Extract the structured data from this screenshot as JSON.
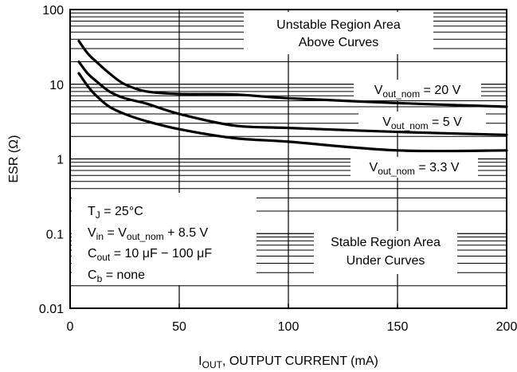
{
  "chart_data": {
    "type": "line",
    "xlabel": {
      "main": "I",
      "sub": "OUT",
      "rest": ", OUTPUT CURRENT (mA)"
    },
    "ylabel": "ESR (Ω)",
    "xlim": [
      0,
      200
    ],
    "ylim": [
      0.01,
      100
    ],
    "yscale": "log",
    "x_ticks": [
      0,
      50,
      100,
      150,
      200
    ],
    "x_tick_labels": [
      "0",
      "50",
      "100",
      "150",
      "200"
    ],
    "y_ticks": [
      0.01,
      0.1,
      1,
      10,
      100
    ],
    "y_tick_labels": [
      "0.01",
      "0.1",
      "1",
      "10",
      "100"
    ],
    "grid": "minor horizontal lines at each decade subdivision",
    "series": [
      {
        "label": [
          "V",
          "out_nom",
          " = 20 V"
        ],
        "x": [
          4,
          8,
          12,
          18,
          25,
          35,
          50,
          75,
          100,
          150,
          200
        ],
        "y": [
          38,
          26,
          20,
          14,
          10,
          8,
          7.4,
          7.3,
          6.5,
          5.6,
          5
        ]
      },
      {
        "label": [
          "V",
          "out_nom",
          " = 5 V"
        ],
        "x": [
          4,
          8,
          12,
          18,
          25,
          35,
          50,
          75,
          100,
          150,
          200
        ],
        "y": [
          20,
          14,
          11,
          8,
          6.5,
          5.5,
          4,
          2.8,
          2.6,
          2.3,
          2.1
        ]
      },
      {
        "label": [
          "V",
          "out_nom",
          " = 3.3 V"
        ],
        "x": [
          4,
          8,
          12,
          18,
          25,
          35,
          50,
          75,
          100,
          150,
          200
        ],
        "y": [
          14,
          9.5,
          7,
          5,
          4,
          3.2,
          2.5,
          1.9,
          1.7,
          1.3,
          1.3
        ]
      }
    ],
    "annotations": {
      "unstable": [
        "Unstable Region Area",
        "Above Curves"
      ],
      "stable": [
        "Stable Region Area",
        "Under Curves"
      ],
      "conditions": [
        [
          [
            "T",
            ""
          ],
          [
            "J",
            "sub"
          ],
          [
            " = 25°C",
            ""
          ]
        ],
        [
          [
            "V",
            ""
          ],
          [
            "in",
            "sub"
          ],
          [
            " = V",
            ""
          ],
          [
            "out_nom",
            "sub"
          ],
          [
            " + 8.5 V",
            ""
          ]
        ],
        [
          [
            "C",
            ""
          ],
          [
            "out",
            "sub"
          ],
          [
            " = 10 μF − 100 μF",
            ""
          ]
        ],
        [
          [
            "C",
            ""
          ],
          [
            "b",
            "sub"
          ],
          [
            " = none",
            ""
          ]
        ]
      ]
    },
    "colors": {
      "line": "#000000",
      "grid": "#000000",
      "background": "#ffffff"
    }
  }
}
